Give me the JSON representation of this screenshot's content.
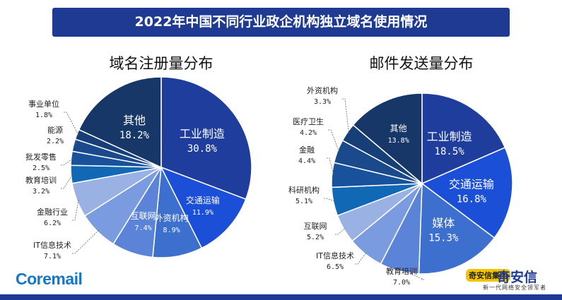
{
  "banner_title": "2022年中国不同行业政企机构独立域名使用情况",
  "brand_left": "Coremail",
  "brand_right": {
    "name": "奇安信",
    "tagline": "新一代网络安全领军者",
    "badge": "奇安信集团"
  },
  "colors": {
    "banner": "#1f3a93",
    "leader": "#666666"
  },
  "chart_data": [
    {
      "type": "pie",
      "title": "域名注册量分布",
      "slices": [
        {
          "label": "工业制造",
          "value": 30.8,
          "display": "30.8%",
          "color": "#1f3d9c",
          "inside": true
        },
        {
          "label": "交通运输",
          "value": 11.9,
          "display": "11.9%",
          "color": "#1b4fd8",
          "inside": true
        },
        {
          "label": "外资机构",
          "value": 8.9,
          "display": "8.9%",
          "color": "#3c6fce",
          "inside": true
        },
        {
          "label": "互联网",
          "value": 7.4,
          "display": "7.4%",
          "color": "#5b84d8",
          "inside": true
        },
        {
          "label": "IT信息技术",
          "value": 7.1,
          "display": "7.1%",
          "color": "#7b9be0",
          "inside": false
        },
        {
          "label": "金融行业",
          "value": 6.2,
          "display": "6.2%",
          "color": "#9ab1e4",
          "inside": false
        },
        {
          "label": "教育培训",
          "value": 3.2,
          "display": "3.2%",
          "color": "#1168b5",
          "inside": false
        },
        {
          "label": "批发零售",
          "value": 2.5,
          "display": "2.5%",
          "color": "#18519c",
          "inside": false
        },
        {
          "label": "能源",
          "value": 2.2,
          "display": "2.2%",
          "color": "#1a4a8c",
          "inside": false
        },
        {
          "label": "事业单位",
          "value": 1.8,
          "display": "1.8%",
          "color": "#173f77",
          "inside": false
        },
        {
          "label": "其他",
          "value": 18.2,
          "display": "18.2%",
          "color": "#163767",
          "inside": true
        }
      ]
    },
    {
      "type": "pie",
      "title": "邮件发送量分布",
      "slices": [
        {
          "label": "工业制造",
          "value": 18.5,
          "display": "18.5%",
          "color": "#1f3d9c",
          "inside": true
        },
        {
          "label": "交通运输",
          "value": 16.8,
          "display": "16.8%",
          "color": "#1b4fd8",
          "inside": true
        },
        {
          "label": "媒体",
          "value": 15.3,
          "display": "15.3%",
          "color": "#3c6fce",
          "inside": true
        },
        {
          "label": "教育培训",
          "value": 7.0,
          "display": "7.0%",
          "color": "#5b84d8",
          "inside": false
        },
        {
          "label": "IT信息技术",
          "value": 6.5,
          "display": "6.5%",
          "color": "#7b9be0",
          "inside": false
        },
        {
          "label": "互联网",
          "value": 5.2,
          "display": "5.2%",
          "color": "#9ab1e4",
          "inside": false
        },
        {
          "label": "科研机构",
          "value": 5.1,
          "display": "5.1%",
          "color": "#1168b5",
          "inside": false
        },
        {
          "label": "金融",
          "value": 4.4,
          "display": "4.4%",
          "color": "#18519c",
          "inside": false
        },
        {
          "label": "医疗卫生",
          "value": 4.2,
          "display": "4.2%",
          "color": "#1a4a8c",
          "inside": false
        },
        {
          "label": "外资机构",
          "value": 3.3,
          "display": "3.3%",
          "color": "#173f77",
          "inside": false
        },
        {
          "label": "其他",
          "value": 13.8,
          "display": "13.8%",
          "color": "#163767",
          "inside": true
        }
      ]
    }
  ]
}
